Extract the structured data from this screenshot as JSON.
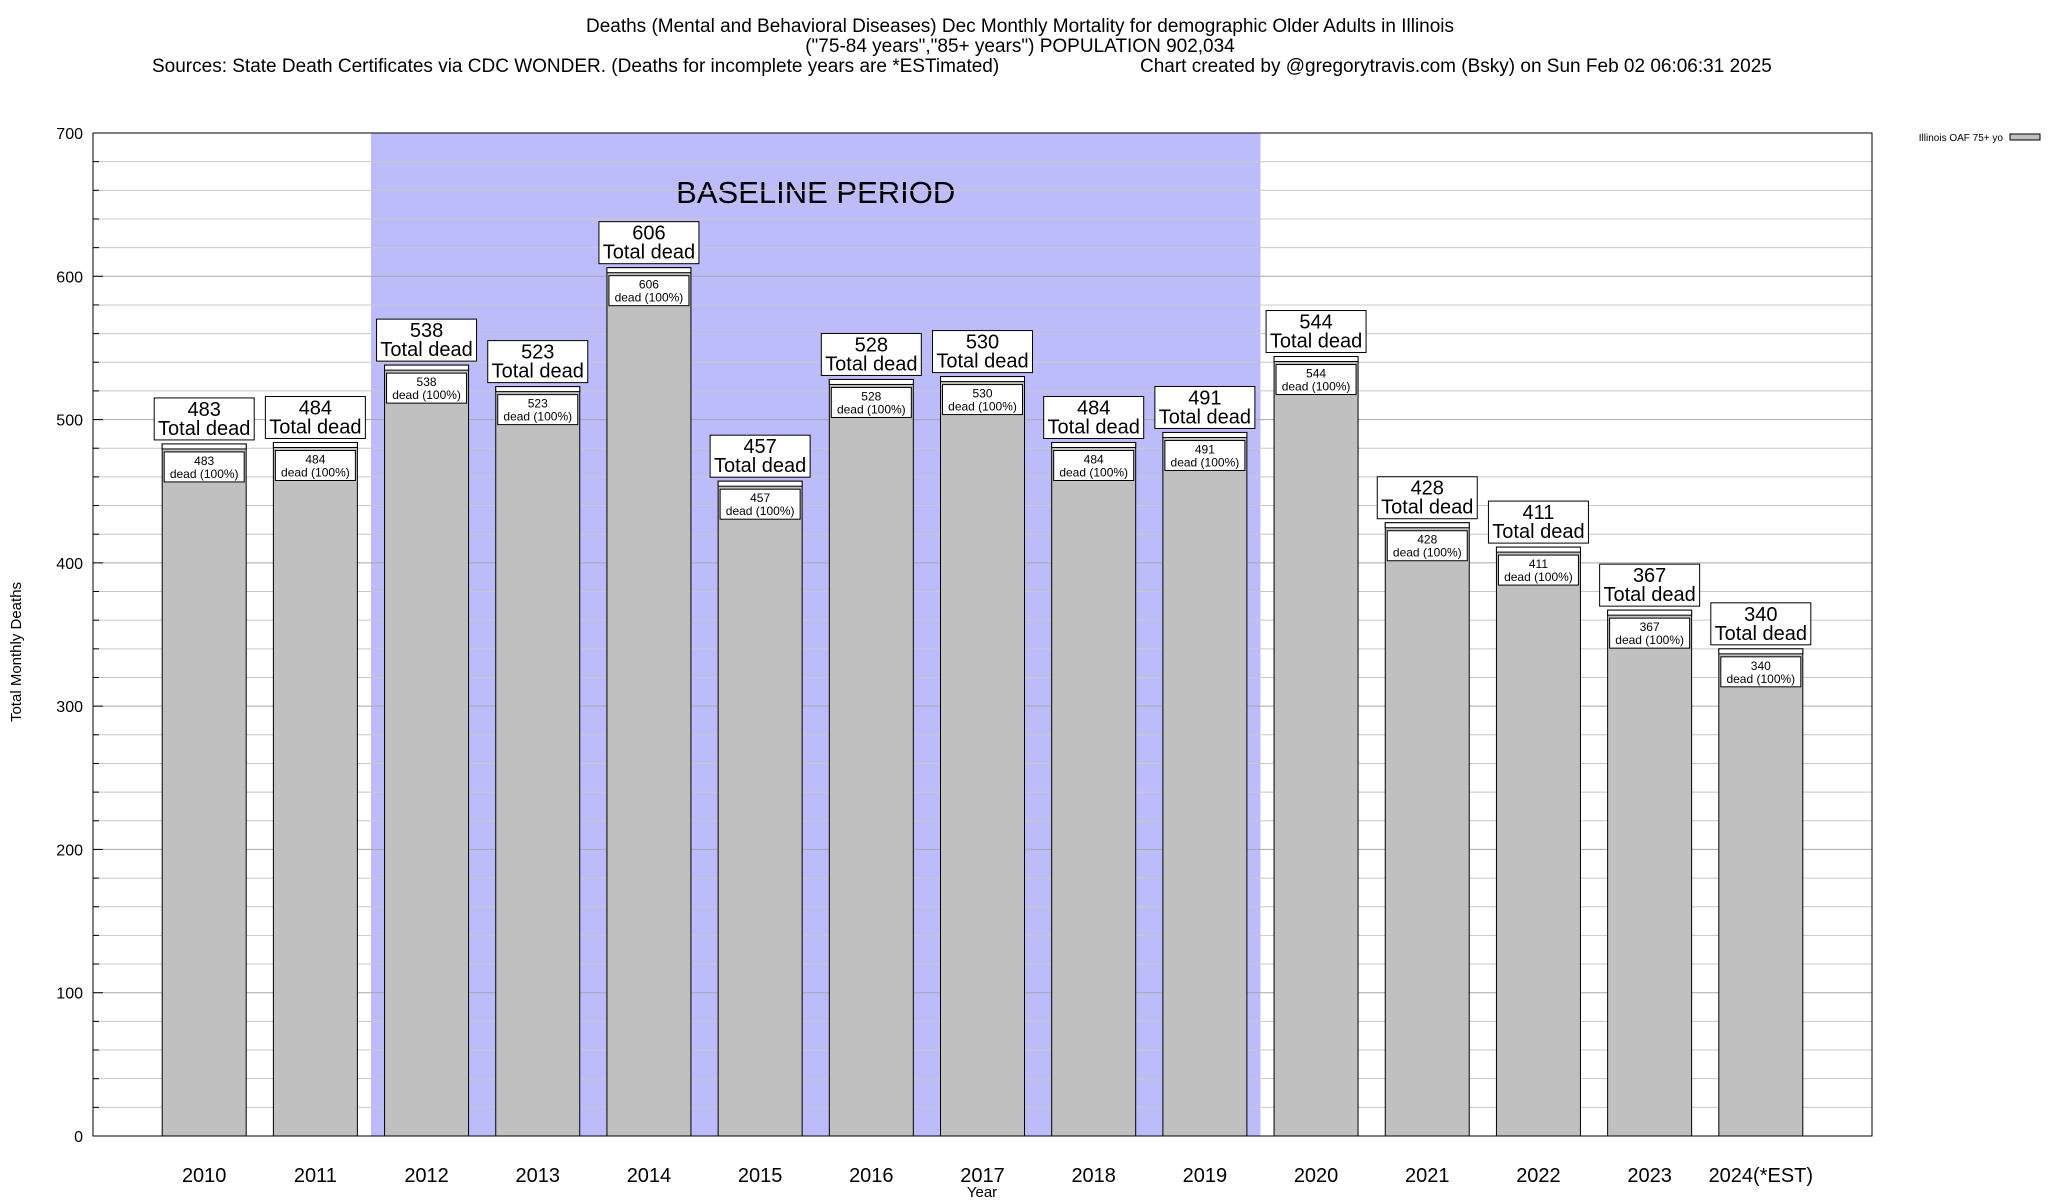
{
  "chart_data": {
    "type": "bar",
    "title_lines": [
      "Deaths (Mental and Behavioral Diseases) Dec Monthly Mortality for demographic Older Adults in Illinois",
      "(\"75-84 years\",\"85+ years\") POPULATION 902,034"
    ],
    "sources": "Sources: State Death Certificates via CDC WONDER. (Deaths for incomplete years are *ESTimated)",
    "credit": "Chart created by @gregorytravis.com (Bsky) on Sun Feb 02 06:06:31 2025",
    "xlabel": "Year",
    "ylabel": "Total Monthly Deaths",
    "ylim": [
      0,
      700
    ],
    "yticks": [
      0,
      100,
      200,
      300,
      400,
      500,
      600,
      700
    ],
    "categories": [
      "2010",
      "2011",
      "2012",
      "2013",
      "2014",
      "2015",
      "2016",
      "2017",
      "2018",
      "2019",
      "2020",
      "2021",
      "2022",
      "2023",
      "2024(*EST)"
    ],
    "values": [
      483,
      484,
      538,
      523,
      606,
      457,
      528,
      530,
      484,
      491,
      544,
      428,
      411,
      367,
      340
    ],
    "top_label_suffix": "Total dead",
    "inner_label_suffix": "dead (100%)",
    "baseline": {
      "label": "BASELINE PERIOD",
      "start": "2012",
      "end": "2019",
      "color": "#bcbcfa"
    },
    "legend": {
      "label": "Illinois OAF 75+ yo",
      "position": "top-right"
    },
    "bar_color": "#c0c0c0",
    "grid": true
  }
}
